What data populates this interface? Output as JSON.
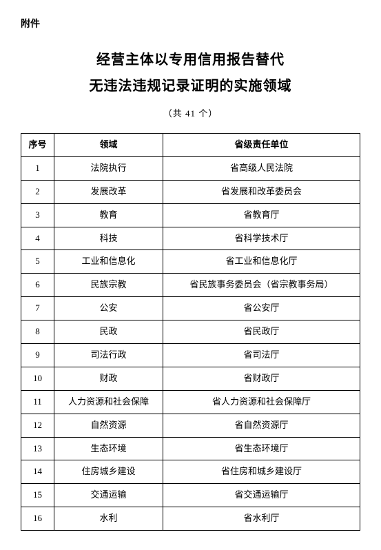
{
  "attachment_label": "附件",
  "title_line1": "经营主体以专用信用报告替代",
  "title_line2": "无违法违规记录证明的实施领域",
  "subtitle": "（共 41 个）",
  "table": {
    "headers": {
      "index": "序号",
      "domain": "领域",
      "unit": "省级责任单位"
    },
    "rows": [
      {
        "index": "1",
        "domain": "法院执行",
        "unit": "省高级人民法院"
      },
      {
        "index": "2",
        "domain": "发展改革",
        "unit": "省发展和改革委员会"
      },
      {
        "index": "3",
        "domain": "教育",
        "unit": "省教育厅"
      },
      {
        "index": "4",
        "domain": "科技",
        "unit": "省科学技术厅"
      },
      {
        "index": "5",
        "domain": "工业和信息化",
        "unit": "省工业和信息化厅"
      },
      {
        "index": "6",
        "domain": "民族宗教",
        "unit": "省民族事务委员会（省宗教事务局）"
      },
      {
        "index": "7",
        "domain": "公安",
        "unit": "省公安厅"
      },
      {
        "index": "8",
        "domain": "民政",
        "unit": "省民政厅"
      },
      {
        "index": "9",
        "domain": "司法行政",
        "unit": "省司法厅"
      },
      {
        "index": "10",
        "domain": "财政",
        "unit": "省财政厅"
      },
      {
        "index": "11",
        "domain": "人力资源和社会保障",
        "unit": "省人力资源和社会保障厅"
      },
      {
        "index": "12",
        "domain": "自然资源",
        "unit": "省自然资源厅"
      },
      {
        "index": "13",
        "domain": "生态环境",
        "unit": "省生态环境厅"
      },
      {
        "index": "14",
        "domain": "住房城乡建设",
        "unit": "省住房和城乡建设厅"
      },
      {
        "index": "15",
        "domain": "交通运输",
        "unit": "省交通运输厅"
      },
      {
        "index": "16",
        "domain": "水利",
        "unit": "省水利厅"
      }
    ]
  },
  "style": {
    "background_color": "#ffffff",
    "text_color": "#000000",
    "border_color": "#000000",
    "title_fontsize": 20,
    "body_fontsize": 13,
    "font_family": "SimSun"
  }
}
